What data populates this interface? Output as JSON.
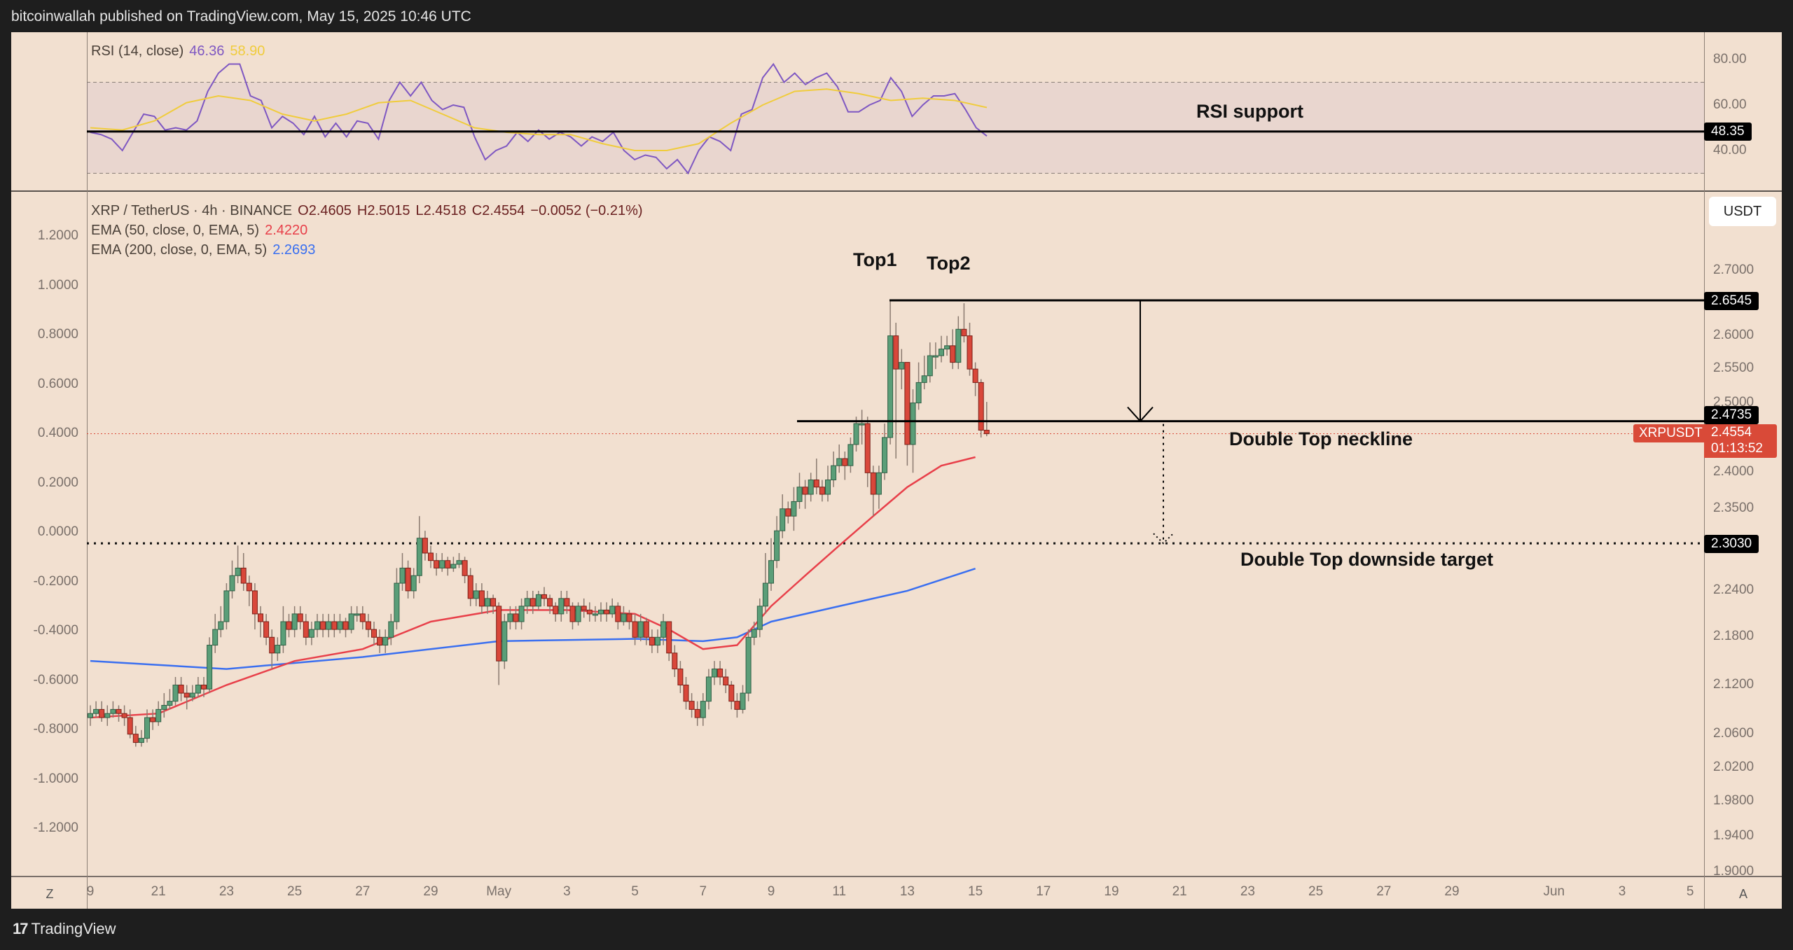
{
  "header": {
    "published": "bitcoinwallah published on TradingView.com, May 15, 2025 10:46 UTC"
  },
  "rsi_legend": {
    "name": "RSI (14, close)",
    "rsi_value": "46.36",
    "ma_value": "58.90"
  },
  "price_legend": {
    "symbol": "XRP / TetherUS · 4h · BINANCE",
    "open": "O2.4605",
    "high": "H2.5015",
    "low": "L2.4518",
    "close": "C2.4554",
    "change": "−0.0052 (−0.21%)",
    "ema50_label": "EMA (50, close, 0, EMA, 5)",
    "ema50_value": "2.4220",
    "ema200_label": "EMA (200, close, 0, EMA, 5)",
    "ema200_value": "2.2693"
  },
  "rsi_axis": {
    "ticks": [
      "80.00",
      "60.00",
      "40.00"
    ],
    "support_value": "48.35"
  },
  "price_axis": {
    "currency_button": "USDT",
    "ticks": [
      "2.7000",
      "2.6000",
      "2.5500",
      "2.5000",
      "2.4000",
      "2.3500",
      "2.2400",
      "2.1800",
      "2.1200",
      "2.0600",
      "2.0200",
      "1.9800",
      "1.9400",
      "1.9000"
    ],
    "top_level": "2.6545",
    "neckline_level": "2.4735",
    "target_level": "2.3030",
    "symbol_tag": "XRPUSDT",
    "last_price": "2.4554",
    "countdown": "01:13:52"
  },
  "left_axis": {
    "ticks": [
      "1.2000",
      "1.0000",
      "0.8000",
      "0.6000",
      "0.4000",
      "0.2000",
      "0.0000",
      "-0.2000",
      "-0.4000",
      "-0.6000",
      "-0.8000",
      "-1.0000",
      "-1.2000"
    ]
  },
  "time_axis": {
    "ticks": [
      "9",
      "21",
      "23",
      "25",
      "27",
      "29",
      "May",
      "3",
      "5",
      "7",
      "9",
      "11",
      "13",
      "15",
      "17",
      "19",
      "21",
      "23",
      "25",
      "27",
      "29",
      "Jun",
      "3",
      "5"
    ],
    "left_button": "Z",
    "right_button": "A"
  },
  "annotations": {
    "top1": "Top1",
    "top2": "Top2",
    "neckline": "Double Top neckline",
    "target": "Double Top downside target",
    "rsi_support": "RSI support"
  },
  "footer": {
    "brand": "TradingView"
  },
  "colors": {
    "background": "#f2e0d0",
    "up": "#5a9e78",
    "down": "#d9473a",
    "ema50": "#e8404a",
    "ema200": "#3a6ff0",
    "rsi": "#7e57c2",
    "rsi_ma": "#f0cc3c",
    "last_price": "#d94a38"
  },
  "chart_data": {
    "type": "candlestick",
    "interval": "4h",
    "scale": "log",
    "first_open": 2.08,
    "close": [
      2.085,
      2.09,
      2.08,
      2.085,
      2.09,
      2.085,
      2.08,
      2.06,
      2.05,
      2.055,
      2.08,
      2.075,
      2.09,
      2.095,
      2.1,
      2.12,
      2.11,
      2.105,
      2.11,
      2.12,
      2.115,
      2.17,
      2.19,
      2.2,
      2.24,
      2.26,
      2.27,
      2.25,
      2.24,
      2.21,
      2.2,
      2.18,
      2.16,
      2.17,
      2.2,
      2.19,
      2.21,
      2.2,
      2.18,
      2.19,
      2.2,
      2.19,
      2.2,
      2.19,
      2.2,
      2.19,
      2.21,
      2.21,
      2.2,
      2.19,
      2.18,
      2.17,
      2.18,
      2.2,
      2.25,
      2.27,
      2.24,
      2.26,
      2.31,
      2.29,
      2.28,
      2.27,
      2.28,
      2.27,
      2.275,
      2.28,
      2.26,
      2.23,
      2.24,
      2.22,
      2.23,
      2.22,
      2.15,
      2.2,
      2.21,
      2.2,
      2.22,
      2.23,
      2.22,
      2.235,
      2.23,
      2.22,
      2.21,
      2.23,
      2.22,
      2.2,
      2.22,
      2.215,
      2.21,
      2.21,
      2.215,
      2.21,
      2.22,
      2.2,
      2.21,
      2.2,
      2.18,
      2.2,
      2.18,
      2.17,
      2.18,
      2.2,
      2.16,
      2.14,
      2.12,
      2.1,
      2.09,
      2.08,
      2.1,
      2.13,
      2.14,
      2.13,
      2.12,
      2.1,
      2.09,
      2.11,
      2.18,
      2.19,
      2.22,
      2.25,
      2.28,
      2.32,
      2.35,
      2.34,
      2.36,
      2.38,
      2.37,
      2.39,
      2.38,
      2.37,
      2.39,
      2.41,
      2.42,
      2.41,
      2.44,
      2.47,
      2.47,
      2.4,
      2.37,
      2.4,
      2.45,
      2.6,
      2.55,
      2.56,
      2.44,
      2.5,
      2.53,
      2.54,
      2.57,
      2.57,
      2.58,
      2.585,
      2.56,
      2.61,
      2.6,
      2.55,
      2.53,
      2.4605,
      2.4554
    ],
    "high": [
      2.095,
      2.1,
      2.1,
      2.095,
      2.1,
      2.095,
      2.095,
      2.09,
      2.07,
      2.065,
      2.09,
      2.09,
      2.1,
      2.11,
      2.115,
      2.13,
      2.13,
      2.12,
      2.12,
      2.13,
      2.13,
      2.18,
      2.21,
      2.22,
      2.25,
      2.28,
      2.3,
      2.29,
      2.26,
      2.25,
      2.22,
      2.21,
      2.19,
      2.18,
      2.22,
      2.21,
      2.22,
      2.22,
      2.21,
      2.2,
      2.21,
      2.21,
      2.21,
      2.21,
      2.21,
      2.205,
      2.22,
      2.22,
      2.22,
      2.21,
      2.2,
      2.19,
      2.19,
      2.21,
      2.27,
      2.29,
      2.28,
      2.27,
      2.34,
      2.32,
      2.3,
      2.29,
      2.29,
      2.285,
      2.285,
      2.29,
      2.285,
      2.27,
      2.25,
      2.25,
      2.24,
      2.235,
      2.225,
      2.21,
      2.22,
      2.22,
      2.23,
      2.24,
      2.24,
      2.24,
      2.245,
      2.235,
      2.225,
      2.24,
      2.24,
      2.225,
      2.225,
      2.23,
      2.225,
      2.22,
      2.225,
      2.225,
      2.23,
      2.225,
      2.22,
      2.215,
      2.21,
      2.21,
      2.205,
      2.19,
      2.19,
      2.21,
      2.2,
      2.17,
      2.15,
      2.13,
      2.11,
      2.1,
      2.11,
      2.14,
      2.15,
      2.15,
      2.14,
      2.125,
      2.11,
      2.12,
      2.19,
      2.2,
      2.23,
      2.29,
      2.31,
      2.34,
      2.37,
      2.36,
      2.38,
      2.4,
      2.39,
      2.4,
      2.42,
      2.39,
      2.41,
      2.43,
      2.44,
      2.43,
      2.45,
      2.48,
      2.49,
      2.48,
      2.41,
      2.41,
      2.47,
      2.6545,
      2.62,
      2.58,
      2.56,
      2.52,
      2.56,
      2.57,
      2.59,
      2.59,
      2.6,
      2.6,
      2.61,
      2.63,
      2.65,
      2.62,
      2.56,
      2.535,
      2.5015
    ],
    "low": [
      2.07,
      2.08,
      2.075,
      2.07,
      2.08,
      2.075,
      2.07,
      2.055,
      2.045,
      2.045,
      2.05,
      2.065,
      2.07,
      2.08,
      2.09,
      2.095,
      2.1,
      2.09,
      2.1,
      2.105,
      2.105,
      2.11,
      2.16,
      2.18,
      2.19,
      2.23,
      2.25,
      2.24,
      2.22,
      2.19,
      2.18,
      2.17,
      2.14,
      2.15,
      2.16,
      2.18,
      2.18,
      2.19,
      2.17,
      2.17,
      2.18,
      2.18,
      2.18,
      2.18,
      2.185,
      2.18,
      2.185,
      2.2,
      2.19,
      2.18,
      2.17,
      2.16,
      2.16,
      2.17,
      2.19,
      2.24,
      2.23,
      2.23,
      2.25,
      2.28,
      2.27,
      2.26,
      2.265,
      2.26,
      2.265,
      2.27,
      2.25,
      2.22,
      2.22,
      2.21,
      2.21,
      2.21,
      2.12,
      2.14,
      2.19,
      2.19,
      2.19,
      2.21,
      2.21,
      2.215,
      2.22,
      2.21,
      2.2,
      2.2,
      2.21,
      2.19,
      2.195,
      2.205,
      2.2,
      2.2,
      2.2,
      2.2,
      2.205,
      2.19,
      2.195,
      2.19,
      2.17,
      2.175,
      2.17,
      2.16,
      2.16,
      2.17,
      2.15,
      2.13,
      2.11,
      2.09,
      2.08,
      2.07,
      2.07,
      2.09,
      2.12,
      2.12,
      2.11,
      2.09,
      2.08,
      2.085,
      2.1,
      2.17,
      2.18,
      2.21,
      2.24,
      2.27,
      2.31,
      2.33,
      2.32,
      2.35,
      2.35,
      2.36,
      2.37,
      2.36,
      2.36,
      2.38,
      2.4,
      2.39,
      2.4,
      2.43,
      2.44,
      2.38,
      2.34,
      2.35,
      2.39,
      2.44,
      2.42,
      2.52,
      2.41,
      2.4,
      2.49,
      2.52,
      2.53,
      2.55,
      2.56,
      2.57,
      2.55,
      2.55,
      2.59,
      2.54,
      2.51,
      2.45,
      2.4518
    ],
    "ema50": [
      [
        "Apr 19",
        2.08
      ],
      [
        "Apr 21",
        2.085
      ],
      [
        "Apr 23",
        2.12
      ],
      [
        "Apr 25",
        2.15
      ],
      [
        "Apr 27",
        2.165
      ],
      [
        "Apr 29",
        2.2
      ],
      [
        "May 1",
        2.215
      ],
      [
        "May 3",
        2.215
      ],
      [
        "May 5",
        2.21
      ],
      [
        "May 6",
        2.19
      ],
      [
        "May 7",
        2.165
      ],
      [
        "May 8",
        2.17
      ],
      [
        "May 9",
        2.22
      ],
      [
        "May 10",
        2.26
      ],
      [
        "May 11",
        2.3
      ],
      [
        "May 12",
        2.34
      ],
      [
        "May 13",
        2.38
      ],
      [
        "May 14",
        2.41
      ],
      [
        "May 15",
        2.422
      ]
    ],
    "ema200": [
      [
        "Apr 19",
        2.15
      ],
      [
        "Apr 23",
        2.14
      ],
      [
        "Apr 27",
        2.155
      ],
      [
        "May 1",
        2.175
      ],
      [
        "May 5",
        2.178
      ],
      [
        "May 7",
        2.175
      ],
      [
        "May 8",
        2.18
      ],
      [
        "May 9",
        2.2
      ],
      [
        "May 11",
        2.22
      ],
      [
        "May 13",
        2.24
      ],
      [
        "May 15",
        2.2693
      ]
    ],
    "rsi": [
      48,
      47,
      45,
      40,
      48,
      56,
      55,
      49,
      50,
      49,
      53,
      66,
      74,
      78,
      78,
      64,
      62,
      50,
      55,
      52,
      47,
      55,
      46,
      52,
      46,
      53,
      52,
      45,
      62,
      70,
      64,
      70,
      62,
      58,
      60,
      59,
      46,
      36,
      40,
      42,
      48,
      44,
      49,
      45,
      48,
      46,
      42,
      46,
      44,
      48,
      40,
      36,
      38,
      37,
      32,
      36,
      30,
      40,
      46,
      44,
      40,
      56,
      58,
      72,
      78,
      70,
      74,
      69,
      72,
      74,
      68,
      57,
      57,
      60,
      62,
      72,
      66,
      55,
      60,
      64,
      64,
      65,
      58,
      50,
      46.36
    ],
    "rsi_ma": [
      50,
      49,
      53,
      61,
      64,
      62,
      56,
      53,
      56,
      61,
      62,
      56,
      50,
      48,
      47,
      47,
      43,
      40,
      40,
      43,
      52,
      60,
      66,
      67,
      65,
      62,
      63,
      62,
      58.9
    ],
    "rsi_levels": {
      "upper": 70,
      "lower": 30,
      "support": 48.35
    },
    "levels": {
      "double_top": 2.6545,
      "neckline": 2.4735,
      "target": 2.303,
      "last": 2.4554
    }
  }
}
